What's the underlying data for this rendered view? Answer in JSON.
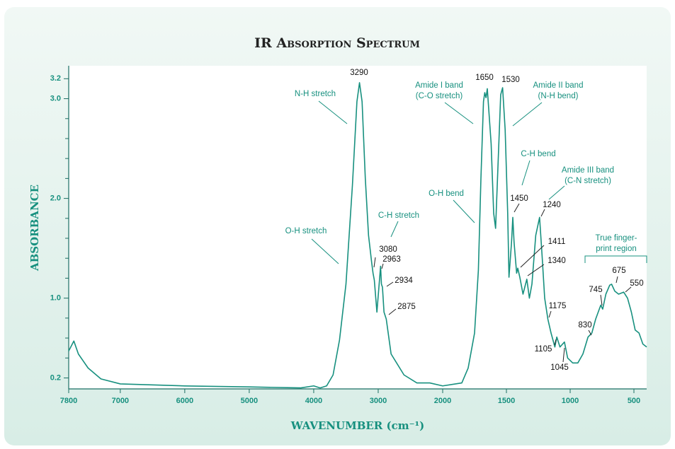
{
  "chart_data": {
    "type": "line",
    "title": "IR Absorption Spectrum",
    "x_label": "WAVENUMBER (cm⁻¹)",
    "y_label": "ABSORBANCE",
    "color": "#17907f",
    "xlim": [
      7800,
      400
    ],
    "x_scale_change": 2000,
    "xticks": [
      7800,
      7000,
      6000,
      5000,
      4000,
      3000,
      2000,
      1500,
      1000,
      500
    ],
    "ylim": [
      0.09,
      3.33
    ],
    "yticks": [
      0.2,
      {
        "value": 1,
        "label": "1.0"
      },
      {
        "value": 2,
        "label": "2.0"
      },
      {
        "value": 3,
        "label": "3.0"
      },
      3.2
    ],
    "yminorticks": [
      0.4,
      0.6,
      0.8,
      1.2,
      1.4,
      1.6,
      1.8,
      2.2,
      2.4,
      2.6,
      2.8
    ],
    "x": [
      7800,
      7720,
      7650,
      7500,
      7300,
      7000,
      6000,
      5000,
      4200,
      4000,
      3900,
      3800,
      3700,
      3600,
      3500,
      3400,
      3330,
      3290,
      3250,
      3200,
      3150,
      3100,
      3080,
      3060,
      3020,
      2963,
      2950,
      2934,
      2910,
      2875,
      2860,
      2800,
      2600,
      2400,
      2200,
      2000,
      1850,
      1800,
      1750,
      1720,
      1700,
      1680,
      1670,
      1660,
      1650,
      1620,
      1600,
      1585,
      1570,
      1545,
      1530,
      1510,
      1490,
      1480,
      1460,
      1450,
      1440,
      1420,
      1411,
      1395,
      1370,
      1340,
      1320,
      1300,
      1270,
      1240,
      1220,
      1200,
      1175,
      1150,
      1120,
      1105,
      1080,
      1045,
      1020,
      980,
      940,
      900,
      860,
      830,
      800,
      760,
      745,
      720,
      690,
      675,
      650,
      620,
      580,
      550,
      520,
      490,
      460,
      430,
      400
    ],
    "values": [
      0.47,
      0.57,
      0.44,
      0.3,
      0.19,
      0.14,
      0.12,
      0.11,
      0.1,
      0.12,
      0.1,
      0.12,
      0.23,
      0.58,
      1.14,
      2.13,
      2.97,
      3.16,
      2.97,
      2.2,
      1.63,
      1.35,
      1.25,
      1.18,
      0.86,
      1.32,
      1.14,
      1.11,
      0.86,
      0.79,
      0.72,
      0.44,
      0.23,
      0.15,
      0.15,
      0.12,
      0.15,
      0.3,
      0.65,
      1.28,
      2.2,
      2.97,
      3.06,
      3.01,
      3.1,
      2.55,
      1.85,
      1.7,
      2.2,
      3.04,
      3.11,
      2.69,
      1.85,
      1.21,
      1.56,
      1.81,
      1.56,
      1.25,
      1.3,
      1.21,
      1.04,
      1.19,
      1.0,
      1.14,
      1.63,
      1.81,
      1.42,
      1.0,
      0.79,
      0.65,
      0.51,
      0.61,
      0.51,
      0.56,
      0.4,
      0.35,
      0.35,
      0.44,
      0.61,
      0.65,
      0.79,
      0.93,
      0.89,
      1.04,
      1.13,
      1.14,
      1.07,
      1.04,
      1.06,
      1.0,
      0.86,
      0.68,
      0.65,
      0.54,
      0.51
    ],
    "peak_labels": [
      3290,
      3080,
      2963,
      2934,
      2875,
      1650,
      1530,
      1450,
      1411,
      1340,
      1240,
      1175,
      1105,
      1045,
      830,
      745,
      675,
      550
    ],
    "annotations": [
      {
        "text": [
          "N-H stretch"
        ]
      },
      {
        "text": [
          "O-H stretch"
        ]
      },
      {
        "text": [
          "C-H stretch"
        ]
      },
      {
        "text": [
          "Amide I band",
          "(C-O stretch)"
        ]
      },
      {
        "text": [
          "O-H bend"
        ]
      },
      {
        "text": [
          "Amide II band",
          "(N-H bend)"
        ]
      },
      {
        "text": [
          "C-H bend"
        ]
      },
      {
        "text": [
          "Amide III band",
          "(C-N stretch)"
        ]
      },
      {
        "text": [
          "True finger-",
          "print region"
        ]
      }
    ]
  }
}
